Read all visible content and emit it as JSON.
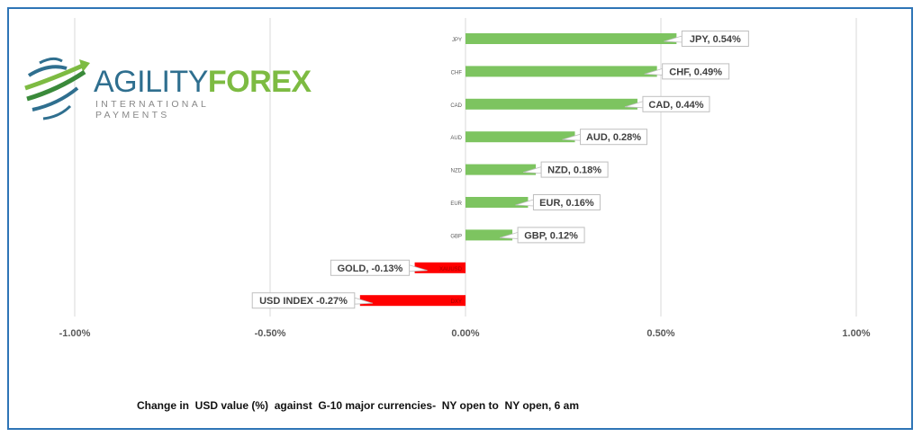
{
  "logo": {
    "part1": "AGILITY",
    "part2": "FOREX",
    "tagline": "INTERNATIONAL PAYMENTS"
  },
  "caption": "Change in  USD value (%)  against  G-10 major currencies-  NY open to  NY open, 6 am",
  "chart_data": {
    "type": "bar",
    "orientation": "horizontal",
    "categories": [
      "JPY",
      "CHF",
      "CAD",
      "AUD",
      "NZD",
      "EUR",
      "GBP",
      "XAUUSD",
      "DXY"
    ],
    "values": [
      0.54,
      0.49,
      0.44,
      0.28,
      0.18,
      0.16,
      0.12,
      -0.13,
      -0.27
    ],
    "data_labels": [
      "JPY, 0.54%",
      "CHF, 0.49%",
      "CAD, 0.44%",
      "AUD, 0.28%",
      "NZD, 0.18%",
      "EUR, 0.16%",
      "GBP, 0.12%",
      "GOLD, -0.13%",
      "USD INDEX -0.27%"
    ],
    "xlim": [
      -1.0,
      1.0
    ],
    "xticks": [
      "-1.00%",
      "-0.50%",
      "0.00%",
      "0.50%",
      "1.00%"
    ],
    "xtick_values": [
      -1,
      -0.5,
      0,
      0.5,
      1
    ],
    "grid": true,
    "colors": {
      "positive": "#7dc460",
      "negative": "#ff0000"
    }
  }
}
